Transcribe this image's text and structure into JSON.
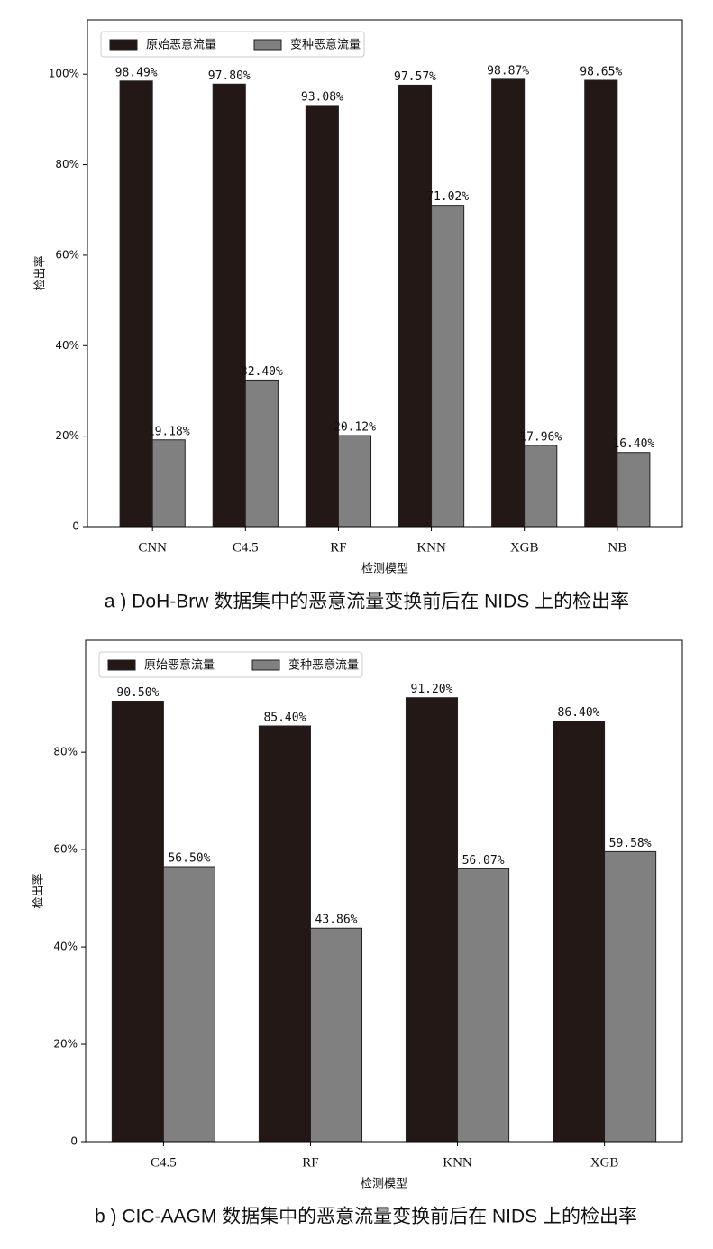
{
  "chart_data": [
    {
      "type": "bar",
      "title": "a ) DoH-Brw 数据集中的恶意流量变换前后在 NIDS 上的检出率",
      "x_label": "检测模型",
      "y_label": "检出率",
      "categories": [
        "CNN",
        "C4.5",
        "RF",
        "KNN",
        "XGB",
        "NB"
      ],
      "series": [
        {
          "name": "原始恶意流量",
          "color": "#231816",
          "values": [
            98.49,
            97.8,
            93.08,
            97.57,
            98.87,
            98.65
          ],
          "value_labels": [
            "98.49%",
            "97.80%",
            "93.08%",
            "97.57%",
            "98.87%",
            "98.65%"
          ]
        },
        {
          "name": "变种恶意流量",
          "color": "#808080",
          "values": [
            19.18,
            32.4,
            20.12,
            71.02,
            17.96,
            16.4
          ],
          "value_labels": [
            "19.18%",
            "32.40%",
            "20.12%",
            "71.02%",
            "17.96%",
            "16.40%"
          ]
        }
      ],
      "ylim": [
        0,
        112
      ],
      "yticks": [
        0,
        {
          "value": 20,
          "label": "20%"
        },
        {
          "value": 40,
          "label": "40%"
        },
        {
          "value": 60,
          "label": "60%"
        },
        {
          "value": 80,
          "label": "80%"
        },
        {
          "value": 100,
          "label": "100%"
        }
      ],
      "legend": "upper left"
    },
    {
      "type": "bar",
      "title": "b ) CIC-AAGM 数据集中的恶意流量变换前后在 NIDS 上的检出率",
      "x_label": "检测模型",
      "y_label": "检出率",
      "categories": [
        "C4.5",
        "RF",
        "KNN",
        "XGB"
      ],
      "series": [
        {
          "name": "原始恶意流量",
          "color": "#231816",
          "values": [
            90.5,
            85.4,
            91.2,
            86.4
          ],
          "value_labels": [
            "90.50%",
            "85.40%",
            "91.20%",
            "86.40%"
          ]
        },
        {
          "name": "变种恶意流量",
          "color": "#808080",
          "values": [
            56.5,
            43.86,
            56.07,
            59.58
          ],
          "value_labels": [
            "56.50%",
            "43.86%",
            "56.07%",
            "59.58%"
          ]
        }
      ],
      "ylim": [
        0,
        103
      ],
      "yticks": [
        0,
        {
          "value": 20,
          "label": "20%"
        },
        {
          "value": 40,
          "label": "40%"
        },
        {
          "value": 60,
          "label": "60%"
        },
        {
          "value": 80,
          "label": "80%"
        }
      ],
      "legend": "upper left"
    }
  ]
}
